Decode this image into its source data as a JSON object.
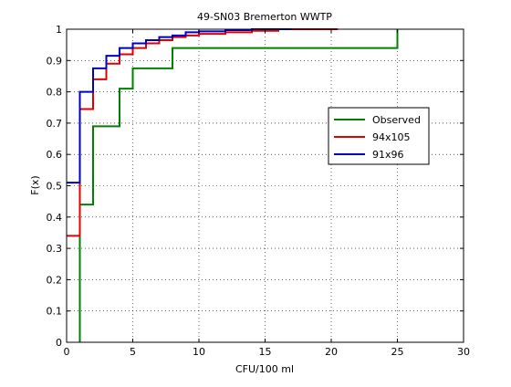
{
  "chart_data": {
    "type": "line",
    "step": true,
    "title": "49-SN03 Bremerton WWTP",
    "xlabel": "CFU/100 ml",
    "ylabel": "F(x)",
    "xlim": [
      0,
      30
    ],
    "ylim": [
      0,
      1
    ],
    "xticks": [
      0,
      5,
      10,
      15,
      20,
      25,
      30
    ],
    "yticks": [
      0,
      0.1,
      0.2,
      0.3,
      0.4,
      0.5,
      0.6,
      0.7,
      0.8,
      0.9,
      1
    ],
    "grid": true,
    "legend_position": "right",
    "series": [
      {
        "name": "Observed",
        "color": "#008000",
        "x": [
          1,
          1,
          2,
          2,
          4,
          4,
          5,
          5,
          8,
          8,
          25,
          25
        ],
        "y": [
          0,
          0.44,
          0.44,
          0.69,
          0.69,
          0.81,
          0.81,
          0.875,
          0.875,
          0.94,
          0.94,
          1.0
        ]
      },
      {
        "name": "94x105",
        "color": "#e00000",
        "x": [
          0,
          1,
          1,
          2,
          2,
          3,
          3,
          4,
          4,
          5,
          5,
          6,
          6,
          7,
          7,
          8,
          8,
          9,
          9,
          10,
          10,
          12,
          12,
          14,
          14,
          16,
          16,
          20.5
        ],
        "y": [
          0.34,
          0.34,
          0.745,
          0.745,
          0.84,
          0.84,
          0.89,
          0.89,
          0.92,
          0.92,
          0.94,
          0.94,
          0.955,
          0.955,
          0.965,
          0.965,
          0.975,
          0.975,
          0.98,
          0.98,
          0.985,
          0.985,
          0.99,
          0.99,
          0.995,
          0.995,
          1.0,
          1.0
        ]
      },
      {
        "name": "91x96",
        "color": "#0000c0",
        "x": [
          0,
          1,
          1,
          2,
          2,
          3,
          3,
          4,
          4,
          5,
          5,
          6,
          6,
          7,
          7,
          8,
          8,
          9,
          9,
          10,
          10,
          12,
          12,
          14,
          14,
          17
        ],
        "y": [
          0.51,
          0.51,
          0.8,
          0.8,
          0.875,
          0.875,
          0.915,
          0.915,
          0.94,
          0.94,
          0.955,
          0.955,
          0.965,
          0.965,
          0.975,
          0.975,
          0.98,
          0.98,
          0.99,
          0.99,
          0.993,
          0.993,
          0.997,
          0.997,
          1.0,
          1.0
        ]
      }
    ]
  }
}
